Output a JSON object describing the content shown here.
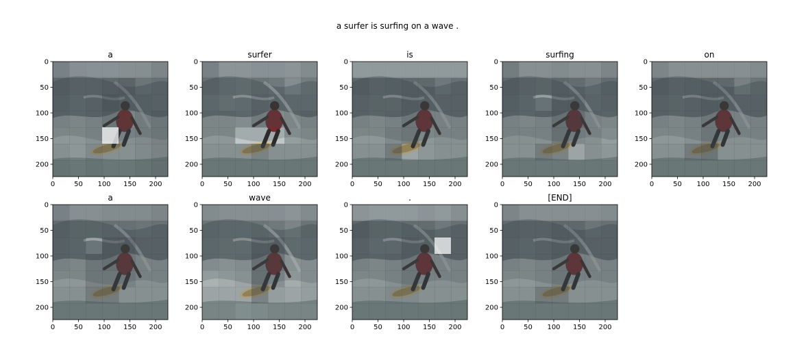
{
  "figure": {
    "caption": "a surfer is surfing on a wave ."
  },
  "chart_data": {
    "type": "heatmap",
    "description_words": [
      "a",
      "surfer",
      "is",
      "surfing",
      "on",
      "a",
      "wave",
      ".",
      "[END]"
    ],
    "grid": [
      7,
      7
    ],
    "xlim": [
      0,
      224
    ],
    "ylim": [
      224,
      0
    ],
    "xticks": [
      0,
      50,
      100,
      150,
      200
    ],
    "yticks": [
      0,
      50,
      100,
      150,
      200
    ],
    "panels": [
      {
        "title": "a",
        "weights": [
          [
            0.35,
            0.2,
            0.18,
            0.18,
            0.2,
            0.22,
            0.3
          ],
          [
            0.55,
            0.45,
            0.45,
            0.55,
            0.6,
            0.4,
            0.45
          ],
          [
            0.5,
            0.4,
            0.45,
            0.65,
            0.55,
            0.5,
            0.45
          ],
          [
            0.45,
            0.4,
            0.45,
            0.55,
            0.4,
            0.5,
            0.55
          ],
          [
            0.4,
            0.4,
            0.45,
            0.5,
            0.45,
            0.5,
            0.55
          ],
          [
            0.45,
            0.4,
            0.5,
            0.45,
            0.45,
            0.5,
            0.55
          ],
          [
            0.5,
            0.45,
            0.5,
            0.45,
            0.45,
            0.5,
            0.55
          ]
        ],
        "bright": [
          [
            4,
            3
          ]
        ]
      },
      {
        "title": "surfer",
        "weights": [
          [
            0.35,
            0.15,
            0.15,
            0.18,
            0.18,
            0.15,
            0.25
          ],
          [
            0.45,
            0.35,
            0.3,
            0.4,
            0.35,
            0.1,
            0.3
          ],
          [
            0.35,
            0.25,
            0.3,
            0.45,
            0.4,
            0.35,
            0.35
          ],
          [
            0.4,
            0.4,
            0.35,
            0.5,
            0.35,
            0.4,
            0.45
          ],
          [
            0.4,
            0.4,
            0.05,
            0.05,
            0.05,
            0.35,
            0.4
          ],
          [
            0.45,
            0.45,
            0.45,
            0.55,
            0.45,
            0.45,
            0.45
          ],
          [
            0.45,
            0.45,
            0.45,
            0.45,
            0.45,
            0.45,
            0.45
          ]
        ],
        "bright": []
      },
      {
        "title": "is",
        "weights": [
          [
            0.1,
            0.1,
            0.1,
            0.1,
            0.1,
            0.1,
            0.1
          ],
          [
            0.55,
            0.45,
            0.5,
            0.55,
            0.55,
            0.35,
            0.45
          ],
          [
            0.45,
            0.4,
            0.4,
            0.55,
            0.5,
            0.45,
            0.45
          ],
          [
            0.45,
            0.4,
            0.45,
            0.55,
            0.45,
            0.45,
            0.45
          ],
          [
            0.4,
            0.4,
            0.5,
            0.55,
            0.4,
            0.45,
            0.45
          ],
          [
            0.45,
            0.45,
            0.6,
            0.3,
            0.4,
            0.45,
            0.45
          ],
          [
            0.45,
            0.45,
            0.45,
            0.45,
            0.45,
            0.45,
            0.45
          ]
        ],
        "bright": []
      },
      {
        "title": "surfing",
        "weights": [
          [
            0.4,
            0.2,
            0.2,
            0.25,
            0.2,
            0.2,
            0.3
          ],
          [
            0.55,
            0.45,
            0.4,
            0.55,
            0.5,
            0.35,
            0.5
          ],
          [
            0.5,
            0.4,
            0.15,
            0.55,
            0.55,
            0.4,
            0.45
          ],
          [
            0.45,
            0.4,
            0.45,
            0.6,
            0.6,
            0.45,
            0.4
          ],
          [
            0.45,
            0.45,
            0.45,
            0.6,
            0.5,
            0.45,
            0.35
          ],
          [
            0.45,
            0.45,
            0.6,
            0.55,
            0.3,
            0.45,
            0.4
          ],
          [
            0.45,
            0.45,
            0.45,
            0.45,
            0.45,
            0.45,
            0.45
          ]
        ],
        "bright": []
      },
      {
        "title": "on",
        "weights": [
          [
            0.3,
            0.2,
            0.2,
            0.2,
            0.2,
            0.2,
            0.25
          ],
          [
            0.55,
            0.45,
            0.5,
            0.55,
            0.55,
            0.25,
            0.4
          ],
          [
            0.45,
            0.4,
            0.45,
            0.55,
            0.5,
            0.45,
            0.45
          ],
          [
            0.45,
            0.4,
            0.45,
            0.55,
            0.45,
            0.45,
            0.45
          ],
          [
            0.4,
            0.4,
            0.45,
            0.55,
            0.45,
            0.45,
            0.45
          ],
          [
            0.45,
            0.45,
            0.6,
            0.65,
            0.45,
            0.45,
            0.45
          ],
          [
            0.45,
            0.45,
            0.45,
            0.45,
            0.45,
            0.45,
            0.45
          ]
        ],
        "bright": []
      },
      {
        "title": "a",
        "weights": [
          [
            0.35,
            0.2,
            0.2,
            0.25,
            0.25,
            0.25,
            0.3
          ],
          [
            0.5,
            0.4,
            0.4,
            0.45,
            0.45,
            0.4,
            0.45
          ],
          [
            0.45,
            0.4,
            0.1,
            0.6,
            0.6,
            0.45,
            0.45
          ],
          [
            0.45,
            0.4,
            0.55,
            0.6,
            0.55,
            0.45,
            0.45
          ],
          [
            0.4,
            0.4,
            0.55,
            0.55,
            0.55,
            0.45,
            0.45
          ],
          [
            0.45,
            0.45,
            0.6,
            0.6,
            0.45,
            0.45,
            0.45
          ],
          [
            0.45,
            0.45,
            0.45,
            0.45,
            0.45,
            0.45,
            0.45
          ]
        ],
        "bright": []
      },
      {
        "title": "wave",
        "weights": [
          [
            0.25,
            0.2,
            0.2,
            0.2,
            0.2,
            0.15,
            0.25
          ],
          [
            0.4,
            0.35,
            0.35,
            0.4,
            0.35,
            0.2,
            0.4
          ],
          [
            0.35,
            0.3,
            0.3,
            0.55,
            0.55,
            0.3,
            0.35
          ],
          [
            0.35,
            0.3,
            0.35,
            0.6,
            0.55,
            0.3,
            0.35
          ],
          [
            0.2,
            0.25,
            0.3,
            0.6,
            0.45,
            0.25,
            0.35
          ],
          [
            0.3,
            0.3,
            0.3,
            0.55,
            0.35,
            0.3,
            0.35
          ],
          [
            0.3,
            0.3,
            0.2,
            0.25,
            0.3,
            0.3,
            0.3
          ]
        ],
        "bright": []
      },
      {
        "title": ".",
        "weights": [
          [
            0.15,
            0.1,
            0.1,
            0.1,
            0.15,
            0.1,
            0.2
          ],
          [
            0.55,
            0.4,
            0.4,
            0.5,
            0.5,
            0.35,
            0.45
          ],
          [
            0.45,
            0.35,
            0.35,
            0.55,
            0.5,
            0.45,
            0.45
          ],
          [
            0.45,
            0.4,
            0.45,
            0.55,
            0.45,
            0.45,
            0.45
          ],
          [
            0.4,
            0.4,
            0.45,
            0.55,
            0.45,
            0.45,
            0.45
          ],
          [
            0.45,
            0.45,
            0.5,
            0.5,
            0.45,
            0.45,
            0.45
          ],
          [
            0.45,
            0.45,
            0.45,
            0.45,
            0.45,
            0.45,
            0.45
          ]
        ],
        "bright": [
          [
            2,
            5
          ]
        ]
      },
      {
        "title": "[END]",
        "weights": [
          [
            0.3,
            0.2,
            0.2,
            0.2,
            0.2,
            0.2,
            0.25
          ],
          [
            0.5,
            0.45,
            0.45,
            0.55,
            0.55,
            0.4,
            0.45
          ],
          [
            0.45,
            0.4,
            0.45,
            0.55,
            0.5,
            0.45,
            0.45
          ],
          [
            0.45,
            0.4,
            0.45,
            0.55,
            0.45,
            0.45,
            0.45
          ],
          [
            0.4,
            0.4,
            0.45,
            0.55,
            0.45,
            0.45,
            0.45
          ],
          [
            0.45,
            0.45,
            0.6,
            0.6,
            0.45,
            0.45,
            0.45
          ],
          [
            0.45,
            0.45,
            0.45,
            0.45,
            0.45,
            0.45,
            0.45
          ]
        ],
        "bright": []
      }
    ]
  }
}
